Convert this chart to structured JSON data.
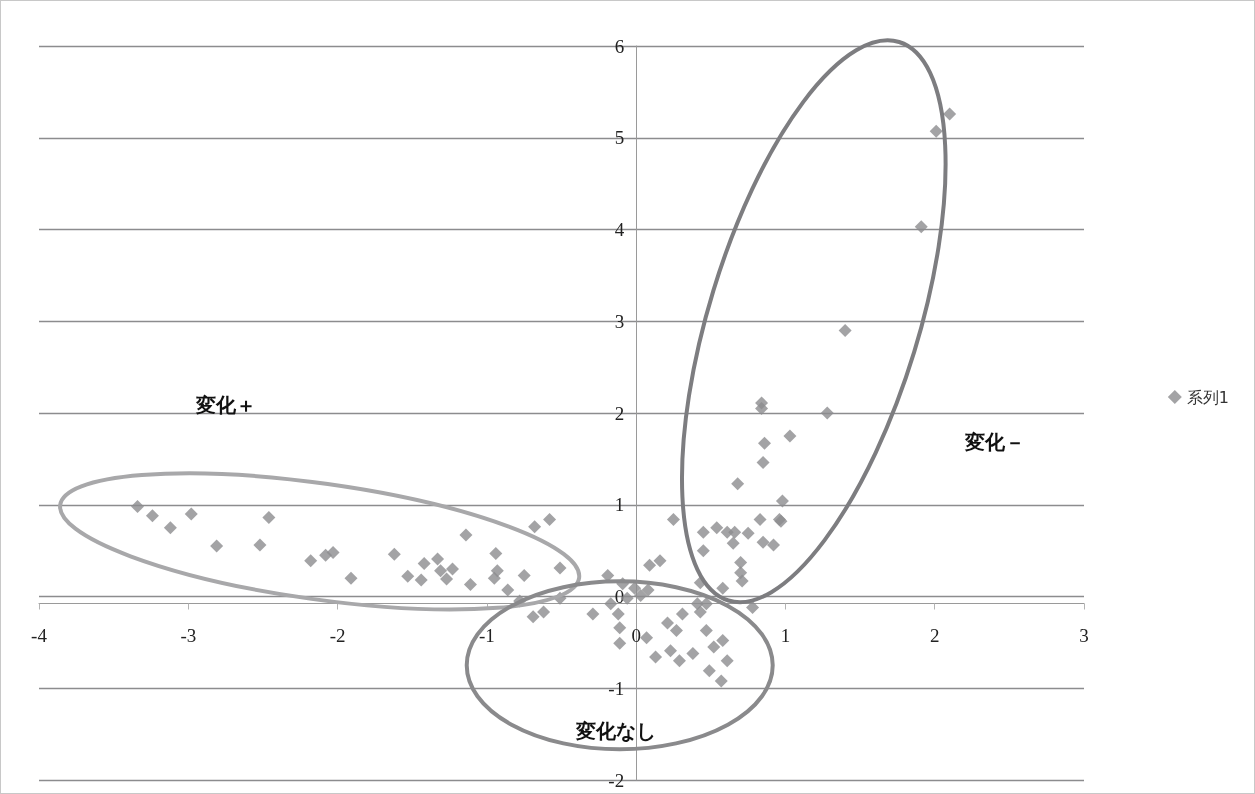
{
  "chart_data": {
    "type": "scatter",
    "marker": "diamond",
    "legend": "right",
    "grid": "y",
    "xlim": [
      -4,
      3
    ],
    "xticks": [
      -4,
      -3,
      -2,
      -1,
      0,
      1,
      2,
      3
    ],
    "ylim": [
      -2,
      6
    ],
    "yticks": [
      -2,
      -1,
      0,
      1,
      2,
      3,
      4,
      5,
      6
    ],
    "annotations": [
      "変化＋",
      "変化－",
      "変化なし"
    ],
    "series": [
      {
        "name": "系列1",
        "color": "#8c8c8e",
        "x": [
          -3.34,
          -3.24,
          -3.12,
          -2.98,
          -2.81,
          -2.52,
          -2.46,
          -2.18,
          -2.08,
          -2.03,
          -1.91,
          -1.62,
          -1.53,
          -1.44,
          -1.42,
          -1.33,
          -1.31,
          -1.27,
          -1.23,
          -1.11,
          -1.14,
          -0.94,
          -0.93,
          -0.95,
          -0.86,
          -0.75,
          -0.78,
          -0.69,
          -0.68,
          -0.58,
          -0.62,
          -0.51,
          -0.51,
          0.68,
          0.98,
          0.25,
          0.83,
          0.96,
          0.45,
          0.54,
          0.61,
          0.66,
          0.75,
          0.85,
          0.92,
          0.45,
          0.65,
          0.7,
          0.7,
          0.71,
          0.16,
          0.09,
          0.43,
          -0.19,
          -0.09,
          -0.01,
          0.08,
          0.58,
          0.78,
          -0.29,
          -0.17,
          -0.12,
          -0.06,
          0.03,
          -0.11,
          -0.11,
          0.07,
          0.13,
          0.23,
          0.27,
          0.31,
          0.41,
          0.47,
          0.21,
          0.29,
          0.38,
          0.47,
          0.58,
          0.52,
          0.61,
          0.49,
          0.57,
          0.43,
          0.84,
          0.84,
          0.86,
          0.85,
          1.03,
          1.28,
          1.4,
          1.91,
          2.01,
          2.1,
          0.97
        ],
        "values": [
          0.98,
          0.88,
          0.75,
          0.9,
          0.55,
          0.56,
          0.86,
          0.39,
          0.45,
          0.48,
          0.2,
          0.46,
          0.22,
          0.18,
          0.36,
          0.41,
          0.28,
          0.19,
          0.3,
          0.13,
          0.67,
          0.47,
          0.28,
          0.2,
          0.07,
          0.23,
          -0.05,
          -0.22,
          0.76,
          0.84,
          -0.17,
          0.31,
          -0.02,
          1.23,
          1.04,
          0.84,
          0.84,
          0.84,
          0.7,
          0.75,
          0.7,
          0.7,
          0.69,
          0.59,
          0.56,
          0.5,
          0.58,
          0.37,
          0.26,
          0.17,
          0.39,
          0.34,
          0.15,
          0.23,
          0.14,
          0.09,
          0.07,
          0.09,
          -0.12,
          -0.19,
          -0.08,
          -0.19,
          -0.02,
          0.01,
          -0.34,
          -0.51,
          -0.45,
          -0.66,
          -0.59,
          -0.37,
          -0.19,
          -0.08,
          -0.08,
          -0.29,
          -0.7,
          -0.62,
          -0.37,
          -0.48,
          -0.55,
          -0.7,
          -0.81,
          -0.92,
          -0.17,
          2.11,
          2.05,
          1.67,
          1.46,
          1.75,
          2.0,
          2.9,
          4.03,
          5.07,
          5.26,
          0.82
        ]
      }
    ]
  }
}
